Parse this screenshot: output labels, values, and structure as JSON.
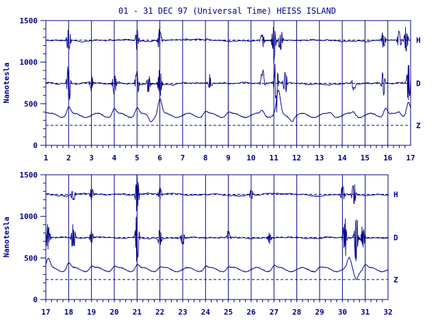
{
  "title": "01 - 31 DEC 97 (Universal Time) HEISS ISLAND",
  "colors": {
    "ink": "#00008b",
    "background": "#ffffff"
  },
  "chart_data": [
    {
      "type": "line",
      "ylabel": "Nanotesla",
      "ylim": [
        0,
        1500
      ],
      "yticks": [
        0,
        500,
        1000,
        1500
      ],
      "xlim": [
        1,
        17
      ],
      "xticks": [
        1,
        2,
        3,
        4,
        5,
        6,
        7,
        8,
        9,
        10,
        11,
        12,
        13,
        14,
        15,
        16,
        17
      ],
      "grid": "vertical lines at each day",
      "series": [
        {
          "name": "H",
          "baseline": 1265,
          "dashed_baseline": 1265,
          "disturbances": [
            [
              2.0,
              120
            ],
            [
              5.0,
              90
            ],
            [
              6.0,
              110
            ],
            [
              10.5,
              90
            ],
            [
              11.0,
              180
            ],
            [
              11.3,
              120
            ],
            [
              15.8,
              80
            ],
            [
              16.5,
              100
            ],
            [
              16.8,
              130
            ]
          ]
        },
        {
          "name": "D",
          "baseline": 745,
          "dashed_baseline": 745,
          "disturbances": [
            [
              2.0,
              200
            ],
            [
              3.0,
              70
            ],
            [
              4.0,
              100
            ],
            [
              5.0,
              130
            ],
            [
              5.5,
              90
            ],
            [
              6.0,
              140
            ],
            [
              8.2,
              80
            ],
            [
              10.5,
              120
            ],
            [
              11.1,
              260
            ],
            [
              11.5,
              120
            ],
            [
              14.5,
              70
            ],
            [
              15.8,
              110
            ],
            [
              16.9,
              180
            ]
          ]
        },
        {
          "name": "Z",
          "baseline": 360,
          "dashed_baseline": 240,
          "bumps": [
            [
              1.0,
              30
            ],
            [
              2.0,
              100
            ],
            [
              4.0,
              80
            ],
            [
              5.0,
              90
            ],
            [
              5.6,
              -60
            ],
            [
              6.0,
              200
            ],
            [
              8.0,
              50
            ],
            [
              9.0,
              40
            ],
            [
              10.5,
              60
            ],
            [
              11.2,
              280
            ],
            [
              11.8,
              -50
            ],
            [
              13.5,
              30
            ],
            [
              14.5,
              40
            ],
            [
              15.9,
              100
            ],
            [
              16.5,
              40
            ],
            [
              16.9,
              170
            ]
          ]
        }
      ]
    },
    {
      "type": "line",
      "ylabel": "Nanotesla",
      "ylim": [
        0,
        1500
      ],
      "yticks": [
        0,
        500,
        1000,
        1500
      ],
      "xlim": [
        17,
        32
      ],
      "xticks": [
        17,
        18,
        19,
        20,
        21,
        22,
        23,
        24,
        25,
        26,
        27,
        28,
        29,
        30,
        31,
        32
      ],
      "grid": "vertical lines at each day",
      "series": [
        {
          "name": "H",
          "baseline": 1265,
          "dashed_baseline": 1265,
          "disturbances": [
            [
              18.2,
              90
            ],
            [
              19.0,
              60
            ],
            [
              21.0,
              -180
            ],
            [
              22.0,
              60
            ],
            [
              26.0,
              50
            ],
            [
              30.0,
              90
            ],
            [
              30.5,
              -120
            ]
          ]
        },
        {
          "name": "D",
          "baseline": 745,
          "dashed_baseline": 745,
          "disturbances": [
            [
              17.1,
              130
            ],
            [
              18.2,
              120
            ],
            [
              19.0,
              60
            ],
            [
              21.0,
              240
            ],
            [
              22.0,
              80
            ],
            [
              23.0,
              70
            ],
            [
              25.0,
              60
            ],
            [
              26.8,
              50
            ],
            [
              30.1,
              220
            ],
            [
              30.6,
              -260
            ],
            [
              30.9,
              130
            ]
          ]
        },
        {
          "name": "Z",
          "baseline": 360,
          "dashed_baseline": 240,
          "bumps": [
            [
              17.1,
              120
            ],
            [
              18.0,
              80
            ],
            [
              19.0,
              40
            ],
            [
              20.0,
              40
            ],
            [
              21.0,
              60
            ],
            [
              22.0,
              30
            ],
            [
              24.0,
              40
            ],
            [
              25.0,
              30
            ],
            [
              27.0,
              50
            ],
            [
              29.0,
              30
            ],
            [
              30.3,
              120
            ],
            [
              30.6,
              -100
            ],
            [
              31.0,
              60
            ]
          ]
        }
      ]
    }
  ]
}
